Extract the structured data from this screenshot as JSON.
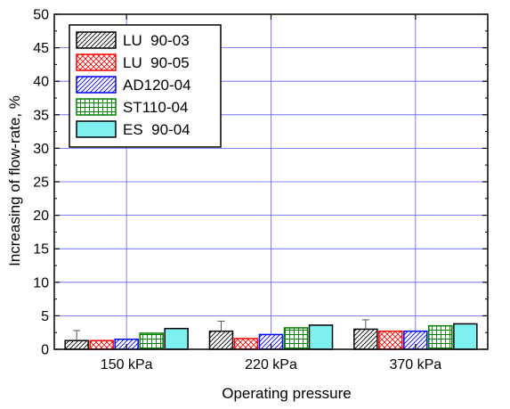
{
  "chart_data": {
    "type": "bar",
    "xlabel": "Operating pressure",
    "ylabel": "Increasing of flow-rate, %",
    "ylim": [
      0,
      50
    ],
    "yticks": [
      0,
      5,
      10,
      15,
      20,
      25,
      30,
      35,
      40,
      45,
      50
    ],
    "grid": true,
    "legend_position": "top-left",
    "categories": [
      "150 kPa",
      "220 kPa",
      "370 kPa"
    ],
    "series": [
      {
        "name": "LU  90-03",
        "values": [
          1.3,
          2.7,
          3.0
        ],
        "error": [
          1.5,
          1.5,
          1.4
        ],
        "color": "#000000",
        "pattern": "diagonal"
      },
      {
        "name": "LU  90-05",
        "values": [
          1.3,
          1.6,
          2.7
        ],
        "color": "#ff0000",
        "pattern": "crosshatch"
      },
      {
        "name": "AD120-04",
        "values": [
          1.5,
          2.2,
          2.7
        ],
        "color": "#0000ff",
        "pattern": "diagonal"
      },
      {
        "name": "ST110-04",
        "values": [
          2.4,
          3.2,
          3.5
        ],
        "color": "#008000",
        "pattern": "grid"
      },
      {
        "name": "ES  90-04",
        "values": [
          3.1,
          3.6,
          3.8
        ],
        "color": "#000000",
        "fill": "#7ff0f0",
        "pattern": "solid"
      }
    ]
  }
}
